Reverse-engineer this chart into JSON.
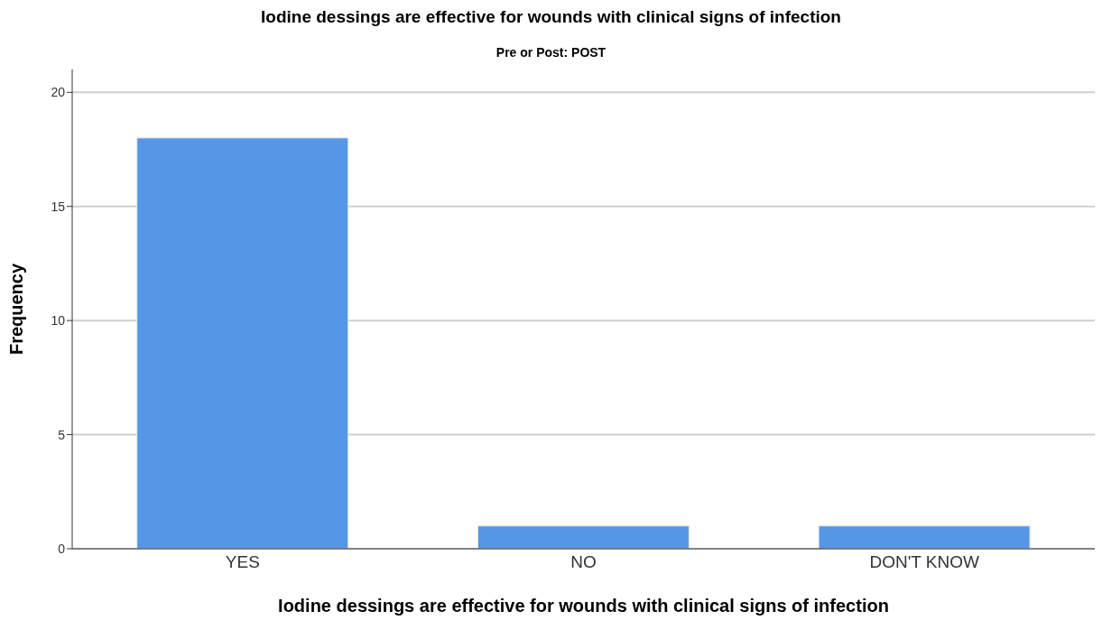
{
  "chart_data": {
    "type": "bar",
    "title": "Iodine dessings are effective for wounds with clinical signs of infection",
    "subtitle": "Pre or Post: POST",
    "xlabel": "Iodine dessings are effective for wounds with clinical signs of infection",
    "ylabel": "Frequency",
    "categories": [
      "YES",
      "NO",
      "DON'T KNOW"
    ],
    "values": [
      18,
      1,
      1
    ],
    "color": "#5596e6",
    "ylim": [
      0,
      21
    ],
    "yticks": [
      0,
      5,
      10,
      15,
      20
    ],
    "grid": "y"
  }
}
